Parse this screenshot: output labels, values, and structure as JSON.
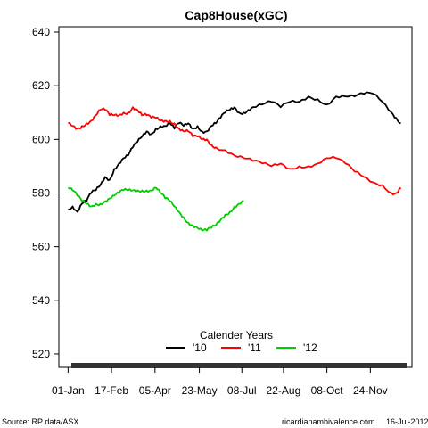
{
  "chart_data": {
    "type": "line",
    "title": "Cap8House(xGC)",
    "xlabel": "",
    "ylabel": "",
    "ylim": [
      515,
      642
    ],
    "yticks": [
      520,
      540,
      560,
      580,
      600,
      620,
      640
    ],
    "xlim": [
      -10,
      372
    ],
    "xticks": [
      {
        "day": 0,
        "label": "01-Jan"
      },
      {
        "day": 47,
        "label": "17-Feb"
      },
      {
        "day": 94,
        "label": "05-Apr"
      },
      {
        "day": 142,
        "label": "23-May"
      },
      {
        "day": 188,
        "label": "08-Jul"
      },
      {
        "day": 233,
        "label": "22-Aug"
      },
      {
        "day": 280,
        "label": "08-Oct"
      },
      {
        "day": 327,
        "label": "24-Nov"
      }
    ],
    "grid": false,
    "legend": {
      "title": "Calender Years",
      "placement": "bottom-center"
    },
    "series": [
      {
        "name": "'10",
        "color": "#000000",
        "x": [
          0,
          5,
          10,
          15,
          20,
          25,
          30,
          35,
          40,
          45,
          50,
          55,
          60,
          65,
          70,
          75,
          80,
          85,
          90,
          95,
          100,
          105,
          110,
          115,
          120,
          125,
          130,
          135,
          140,
          145,
          150,
          155,
          160,
          165,
          170,
          175,
          180,
          185,
          190,
          195,
          200,
          210,
          220,
          230,
          240,
          250,
          260,
          270,
          280,
          290,
          300,
          310,
          320,
          330,
          340,
          350,
          355,
          360
        ],
        "values": [
          574,
          575,
          573,
          576,
          577,
          580,
          581,
          583,
          586,
          585,
          589,
          591,
          593,
          594,
          597,
          599,
          601,
          603,
          602,
          604,
          605,
          605,
          606,
          604,
          606,
          605,
          606,
          604,
          605,
          603,
          603,
          605,
          606,
          608,
          610,
          611,
          612,
          610,
          610,
          611,
          612,
          613,
          614,
          612,
          614,
          614,
          616,
          615,
          613,
          616,
          616,
          616,
          617,
          617,
          614,
          610,
          608,
          606
        ]
      },
      {
        "name": "'11",
        "color": "#ff0000",
        "x": [
          0,
          5,
          10,
          15,
          20,
          25,
          30,
          35,
          40,
          45,
          50,
          55,
          60,
          65,
          70,
          75,
          80,
          85,
          90,
          95,
          100,
          105,
          110,
          115,
          120,
          125,
          130,
          135,
          140,
          145,
          150,
          155,
          160,
          170,
          180,
          190,
          200,
          210,
          220,
          230,
          240,
          250,
          260,
          270,
          280,
          290,
          300,
          310,
          320,
          330,
          340,
          350,
          355,
          360
        ],
        "values": [
          606,
          605,
          604,
          605,
          606,
          607,
          609,
          611,
          611,
          609,
          609,
          609,
          610,
          610,
          612,
          611,
          609,
          609,
          608,
          608,
          607,
          607,
          607,
          606,
          604,
          603,
          603,
          601,
          601,
          600,
          600,
          598,
          597,
          596,
          594,
          593,
          592,
          591,
          590,
          591,
          589,
          590,
          590,
          591,
          593,
          593,
          591,
          588,
          586,
          584,
          583,
          580,
          580,
          582
        ]
      },
      {
        "name": "'12",
        "color": "#00cc00",
        "x": [
          0,
          5,
          10,
          15,
          20,
          25,
          30,
          35,
          40,
          45,
          50,
          55,
          60,
          65,
          70,
          75,
          80,
          85,
          90,
          95,
          100,
          105,
          110,
          115,
          120,
          125,
          130,
          135,
          140,
          145,
          150,
          155,
          160,
          165,
          170,
          175,
          180,
          185,
          190
        ],
        "values": [
          582,
          581,
          579,
          577,
          576,
          575,
          576,
          576,
          577,
          578,
          579,
          580,
          581,
          581,
          581,
          581,
          581,
          581,
          581,
          582,
          580,
          578,
          577,
          575,
          573,
          571,
          569,
          568,
          567,
          566,
          566,
          567,
          568,
          570,
          572,
          573,
          575,
          576,
          577
        ]
      }
    ]
  },
  "footer": {
    "source": "Source: RP data/ASX",
    "site": "ricardianambivalence.com",
    "date": "16-Jul-2012"
  }
}
